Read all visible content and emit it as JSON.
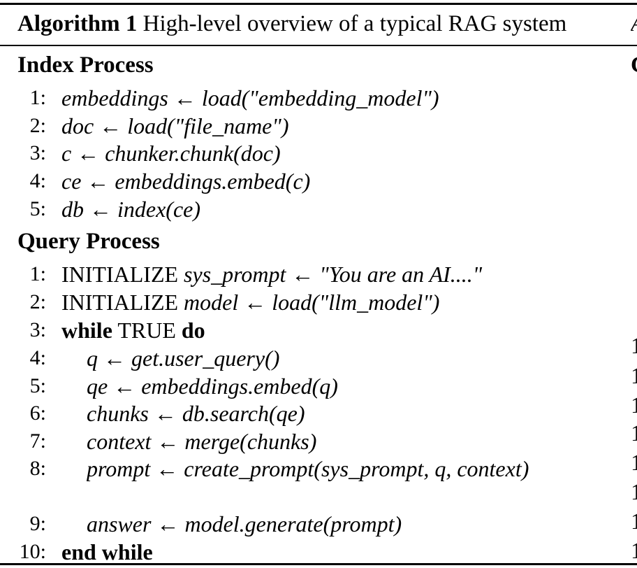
{
  "algorithm": {
    "label": "Algorithm 1",
    "title": "High-level overview of a typical RAG system",
    "index_process": {
      "heading": "Index Process",
      "lines": [
        {
          "no": "1:",
          "text": "embeddings ← load(\"embedding_model\")"
        },
        {
          "no": "2:",
          "text": "doc ← load(\"file_name\")"
        },
        {
          "no": "3:",
          "text": "c ← chunker.chunk(doc)"
        },
        {
          "no": "4:",
          "text": "ce ← embeddings.embed(c)"
        },
        {
          "no": "5:",
          "text": "db ← index(ce)"
        }
      ]
    },
    "query_process": {
      "heading": "Query Process",
      "lines": [
        {
          "no": "1:",
          "keyword": "INITIALIZE",
          "text": "sys_prompt ← \"You are an AI....\""
        },
        {
          "no": "2:",
          "keyword": "INITIALIZE",
          "text": "model ← load(\"llm_model\")"
        },
        {
          "no": "3:",
          "keyword": "while",
          "text": "TRUE",
          "keyword_end": "do"
        },
        {
          "no": "4:",
          "text": "q ← get.user_query()"
        },
        {
          "no": "5:",
          "text": "qe ← embeddings.embed(q)"
        },
        {
          "no": "6:",
          "text": "chunks ← db.search(qe)"
        },
        {
          "no": "7:",
          "text": "context ← merge(chunks)"
        },
        {
          "no": "8:",
          "text": "prompt ← create_prompt(sys_prompt, q, context)"
        },
        {
          "no": "9:",
          "text": "answer ← model.generate(prompt)"
        },
        {
          "no": "10:",
          "keyword": "end while"
        }
      ]
    }
  },
  "right_edge_fragments": {
    "caption": "A",
    "heading": "C",
    "line_marks": [
      "1",
      "1",
      "1",
      "1",
      "1",
      "1",
      "1",
      "1"
    ]
  }
}
